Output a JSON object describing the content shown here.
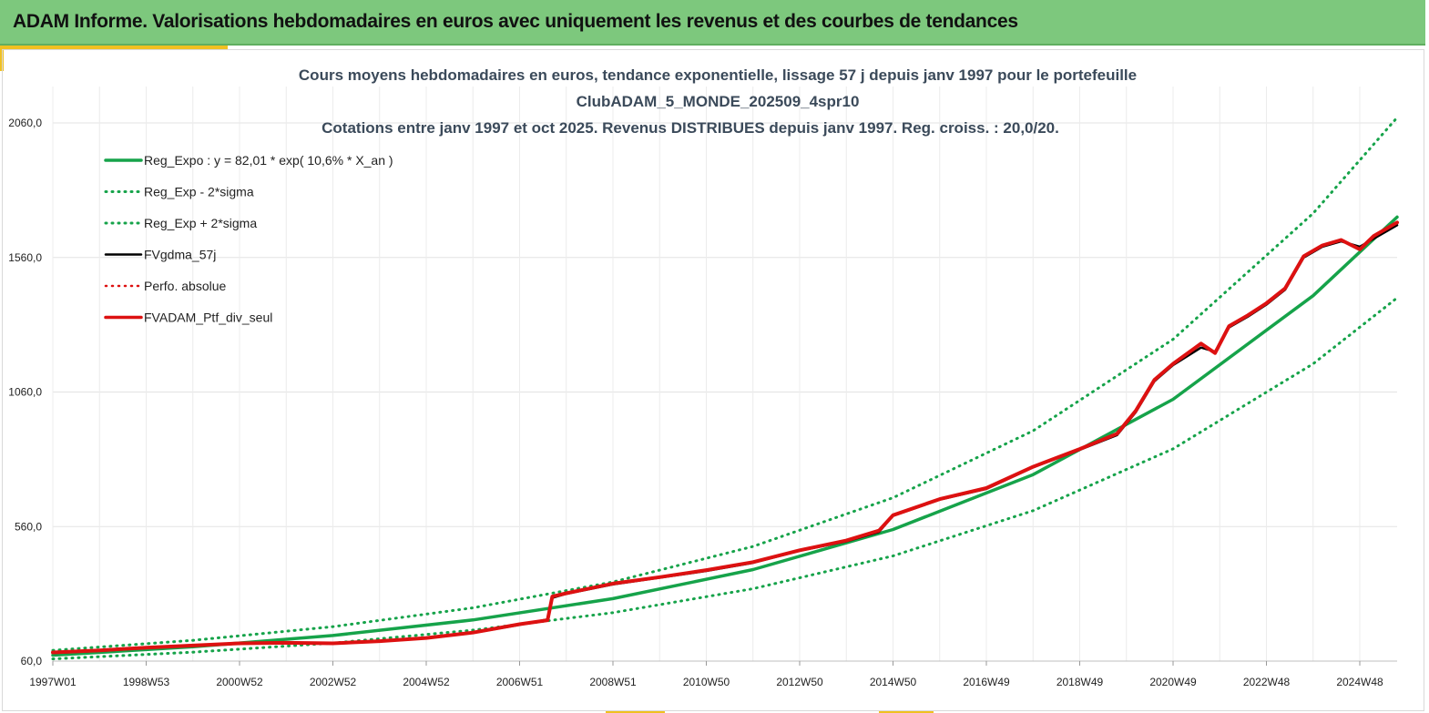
{
  "header": {
    "title": "ADAM Informe. Valorisations hebdomadaires en euros avec uniquement les revenus et des courbes de tendances",
    "bg_color": "#7dc87d",
    "accent_color": "#f0c020"
  },
  "chart_data": {
    "type": "line",
    "title": "Cours moyens hebdomadaires  en euros, tendance exponentielle, lissage 57 j depuis janv 1997 pour le portefeuille",
    "subtitle": "ClubADAM_5_MONDE_202509_4spr10",
    "subtitle2": "Cotations entre janv 1997 et oct 2025. Revenus DISTRIBUES depuis janv 1997. Reg. croiss. : 20,0/20.",
    "xlabel": "",
    "ylabel": "",
    "x_ticks": [
      "1997W01",
      "1998W53",
      "2000W52",
      "2002W52",
      "2004W52",
      "2006W51",
      "2008W51",
      "2010W50",
      "2012W50",
      "2014W50",
      "2016W49",
      "2018W49",
      "2020W49",
      "2022W48",
      "2024W48"
    ],
    "x_tick_years": [
      1997.0,
      1999.0,
      2001.0,
      2003.0,
      2005.0,
      2007.0,
      2009.0,
      2011.0,
      2013.0,
      2015.0,
      2017.0,
      2019.0,
      2021.0,
      2023.0,
      2025.0
    ],
    "xlim": [
      1997.0,
      2025.8
    ],
    "y_ticks": [
      "60,0",
      "560,0",
      "1060,0",
      "1560,0",
      "2060,0"
    ],
    "y_tick_values": [
      60,
      560,
      1060,
      1560,
      2060
    ],
    "ylim": [
      60,
      2060
    ],
    "grid": true,
    "legend_position": "top-left",
    "series": [
      {
        "name": "Reg_Expo : y = 82,01 * exp( 10,6% *  X_an )",
        "color": "#16a34a",
        "style": "solid",
        "width": 3.5,
        "x": [
          1997.0,
          2000.0,
          2003.0,
          2006.0,
          2009.0,
          2012.0,
          2015.0,
          2018.0,
          2021.0,
          2024.0,
          2025.8
        ],
        "values": [
          82,
          113,
          155,
          213,
          292,
          400,
          549,
          753,
          1033,
          1418,
          1710
        ]
      },
      {
        "name": "Reg_Exp - 2*sigma",
        "color": "#16a34a",
        "style": "dotted",
        "width": 3,
        "x": [
          1997.0,
          2000.0,
          2003.0,
          2006.0,
          2009.0,
          2012.0,
          2015.0,
          2018.0,
          2021.0,
          2024.0,
          2025.8
        ],
        "values": [
          68,
          93,
          127,
          175,
          240,
          329,
          451,
          619,
          849,
          1165,
          1410
        ]
      },
      {
        "name": "Reg_Exp + 2*sigma",
        "color": "#16a34a",
        "style": "dotted",
        "width": 3,
        "x": [
          1997.0,
          2000.0,
          2003.0,
          2006.0,
          2009.0,
          2012.0,
          2015.0,
          2018.0,
          2021.0,
          2024.0,
          2025.8
        ],
        "values": [
          100,
          137,
          188,
          258,
          354,
          486,
          667,
          916,
          1256,
          1724,
          2080
        ]
      },
      {
        "name": "FVgdma_57j",
        "color": "#000000",
        "style": "solid",
        "width": 2.5,
        "x": [
          1997.0,
          1998.0,
          1999.0,
          2000.0,
          2001.0,
          2002.0,
          2003.0,
          2004.0,
          2005.0,
          2006.0,
          2007.0,
          2007.6,
          2007.7,
          2008.0,
          2009.0,
          2010.0,
          2011.0,
          2012.0,
          2013.0,
          2014.0,
          2014.7,
          2015.0,
          2016.0,
          2017.0,
          2018.0,
          2019.0,
          2019.8,
          2020.2,
          2020.6,
          2021.0,
          2021.6,
          2021.9,
          2022.2,
          2022.6,
          2023.0,
          2023.4,
          2023.8,
          2024.2,
          2024.6,
          2025.0,
          2025.3,
          2025.8
        ],
        "values": [
          90,
          98,
          108,
          118,
          125,
          128,
          127,
          133,
          145,
          165,
          195,
          215,
          295,
          310,
          345,
          370,
          395,
          425,
          470,
          505,
          540,
          600,
          660,
          700,
          780,
          845,
          900,
          985,
          1100,
          1160,
          1225,
          1210,
          1300,
          1340,
          1385,
          1440,
          1560,
          1600,
          1620,
          1600,
          1630,
          1680
        ]
      },
      {
        "name": "Perfo. absolue",
        "color": "#dd1111",
        "style": "dotted",
        "width": 2.5,
        "x": [
          1997.0,
          1998.0,
          1999.0,
          2000.0,
          2001.0,
          2002.0,
          2003.0,
          2004.0,
          2005.0,
          2006.0,
          2007.0,
          2007.6,
          2007.7,
          2008.0,
          2009.0,
          2010.0,
          2011.0,
          2012.0,
          2013.0,
          2014.0,
          2014.7,
          2015.0,
          2016.0,
          2017.0,
          2018.0,
          2019.0,
          2019.8,
          2020.2,
          2020.6,
          2021.0,
          2021.6,
          2021.9,
          2022.2,
          2022.6,
          2023.0,
          2023.4,
          2023.8,
          2024.2,
          2024.6,
          2025.0,
          2025.3,
          2025.8
        ],
        "values": [
          92,
          100,
          110,
          118,
          126,
          128,
          126,
          134,
          146,
          166,
          197,
          212,
          300,
          312,
          348,
          372,
          398,
          428,
          472,
          508,
          545,
          602,
          662,
          703,
          782,
          848,
          905,
          990,
          1105,
          1165,
          1240,
          1205,
          1305,
          1345,
          1390,
          1445,
          1565,
          1605,
          1625,
          1590,
          1640,
          1690
        ]
      },
      {
        "name": "FVADAM_Ptf_div_seul",
        "color": "#dd1111",
        "style": "solid",
        "width": 4,
        "x": [
          1997.0,
          1998.0,
          1999.0,
          2000.0,
          2001.0,
          2002.0,
          2003.0,
          2004.0,
          2005.0,
          2006.0,
          2007.0,
          2007.6,
          2007.7,
          2008.0,
          2009.0,
          2010.0,
          2011.0,
          2012.0,
          2013.0,
          2014.0,
          2014.7,
          2015.0,
          2016.0,
          2017.0,
          2018.0,
          2019.0,
          2019.8,
          2020.2,
          2020.6,
          2021.0,
          2021.6,
          2021.9,
          2022.2,
          2022.6,
          2023.0,
          2023.4,
          2023.8,
          2024.2,
          2024.6,
          2025.0,
          2025.3,
          2025.8
        ],
        "values": [
          92,
          100,
          110,
          118,
          126,
          128,
          126,
          134,
          146,
          166,
          197,
          212,
          300,
          312,
          348,
          372,
          398,
          428,
          472,
          508,
          545,
          602,
          662,
          703,
          782,
          848,
          905,
          990,
          1105,
          1165,
          1240,
          1205,
          1305,
          1345,
          1390,
          1445,
          1565,
          1605,
          1625,
          1590,
          1640,
          1690
        ]
      }
    ]
  }
}
